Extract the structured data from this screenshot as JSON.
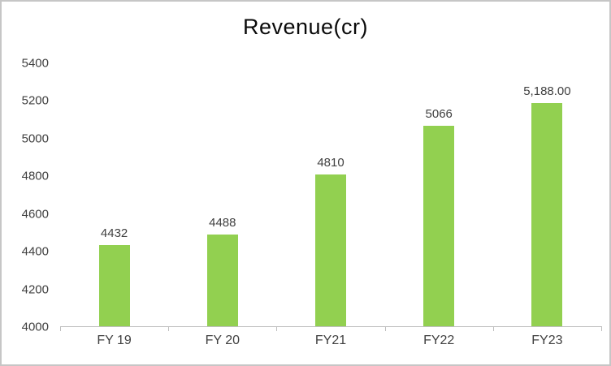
{
  "chart_data": {
    "type": "bar",
    "title": "Revenue(cr)",
    "categories": [
      "FY 19",
      "FY 20",
      "FY21",
      "FY22",
      "FY23"
    ],
    "values": [
      4432,
      4488,
      4810,
      5066,
      5188
    ],
    "value_labels": [
      "4432",
      "4488",
      "4810",
      "5066",
      "5,188.00"
    ],
    "xlabel": "",
    "ylabel": "",
    "ylim": [
      4000,
      5400
    ],
    "ytick_step": 200,
    "ytick_labels": [
      "4000",
      "4200",
      "4400",
      "4600",
      "4800",
      "5000",
      "5200",
      "5400"
    ],
    "grid": false,
    "legend": false,
    "bar_color": "#92D050",
    "text_color": "#404040",
    "title_color": "#0a0a0a",
    "axis_color": "#bfbfbf"
  }
}
